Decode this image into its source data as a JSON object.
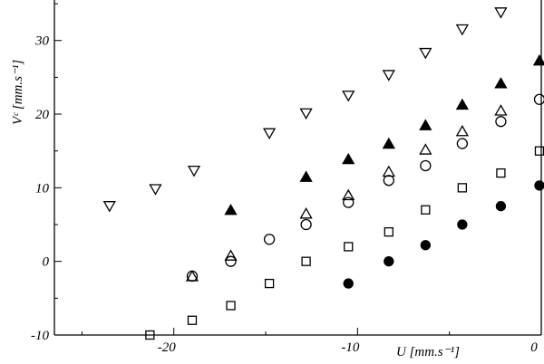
{
  "chart_data": {
    "type": "scatter",
    "title": "",
    "xlabel": "U [mm.s⁻¹]",
    "ylabel": "Vᶜ [mm.s⁻¹]",
    "xlim": [
      -26.5,
      0
    ],
    "ylim": [
      -10,
      35.5
    ],
    "x_ticks": [
      -20,
      -10,
      0
    ],
    "x_tick_labels": [
      "-20",
      "-10",
      "0"
    ],
    "y_ticks": [
      -10,
      0,
      10,
      20,
      30
    ],
    "y_tick_labels": [
      "-10",
      "0",
      "10",
      "20",
      "30"
    ],
    "grid": false,
    "series": [
      {
        "marker": "triangle-down-open",
        "points": [
          [
            -23.5,
            7.5
          ],
          [
            -21.0,
            9.8
          ],
          [
            -18.9,
            12.3
          ],
          [
            -14.8,
            17.4
          ],
          [
            -12.8,
            20.1
          ],
          [
            -10.5,
            22.5
          ],
          [
            -8.3,
            25.3
          ],
          [
            -6.3,
            28.3
          ],
          [
            -4.3,
            31.5
          ],
          [
            -2.2,
            33.8
          ]
        ]
      },
      {
        "marker": "triangle-up-filled",
        "points": [
          [
            -16.9,
            7.0
          ],
          [
            -12.8,
            11.5
          ],
          [
            -10.5,
            13.9
          ],
          [
            -8.3,
            16.0
          ],
          [
            -6.3,
            18.5
          ],
          [
            -4.3,
            21.3
          ],
          [
            -2.2,
            24.2
          ],
          [
            -0.1,
            27.3
          ]
        ]
      },
      {
        "marker": "triangle-up-open",
        "points": [
          [
            -19.0,
            -2.0
          ],
          [
            -16.9,
            0.8
          ],
          [
            -12.8,
            6.5
          ],
          [
            -10.5,
            9.0
          ],
          [
            -8.3,
            12.2
          ],
          [
            -6.3,
            15.2
          ],
          [
            -4.3,
            17.7
          ],
          [
            -2.2,
            20.5
          ]
        ]
      },
      {
        "marker": "circle-open",
        "points": [
          [
            -19.0,
            -2.0
          ],
          [
            -16.9,
            0.0
          ],
          [
            -14.8,
            3.0
          ],
          [
            -12.8,
            5.0
          ],
          [
            -10.5,
            8.0
          ],
          [
            -8.3,
            11.0
          ],
          [
            -6.3,
            13.0
          ],
          [
            -4.3,
            16.0
          ],
          [
            -2.2,
            19.0
          ],
          [
            -0.1,
            22.0
          ]
        ]
      },
      {
        "marker": "square-open",
        "points": [
          [
            -21.3,
            -10.0
          ],
          [
            -19.0,
            -8.0
          ],
          [
            -16.9,
            -6.0
          ],
          [
            -14.8,
            -3.0
          ],
          [
            -12.8,
            0.0
          ],
          [
            -10.5,
            2.0
          ],
          [
            -8.3,
            4.0
          ],
          [
            -6.3,
            7.0
          ],
          [
            -4.3,
            10.0
          ],
          [
            -2.2,
            12.0
          ],
          [
            -0.1,
            15.0
          ]
        ]
      },
      {
        "marker": "circle-filled",
        "points": [
          [
            -10.5,
            -3.0
          ],
          [
            -8.3,
            0.0
          ],
          [
            -6.3,
            2.2
          ],
          [
            -4.3,
            5.0
          ],
          [
            -2.2,
            7.5
          ],
          [
            -0.1,
            10.3
          ]
        ]
      }
    ]
  }
}
